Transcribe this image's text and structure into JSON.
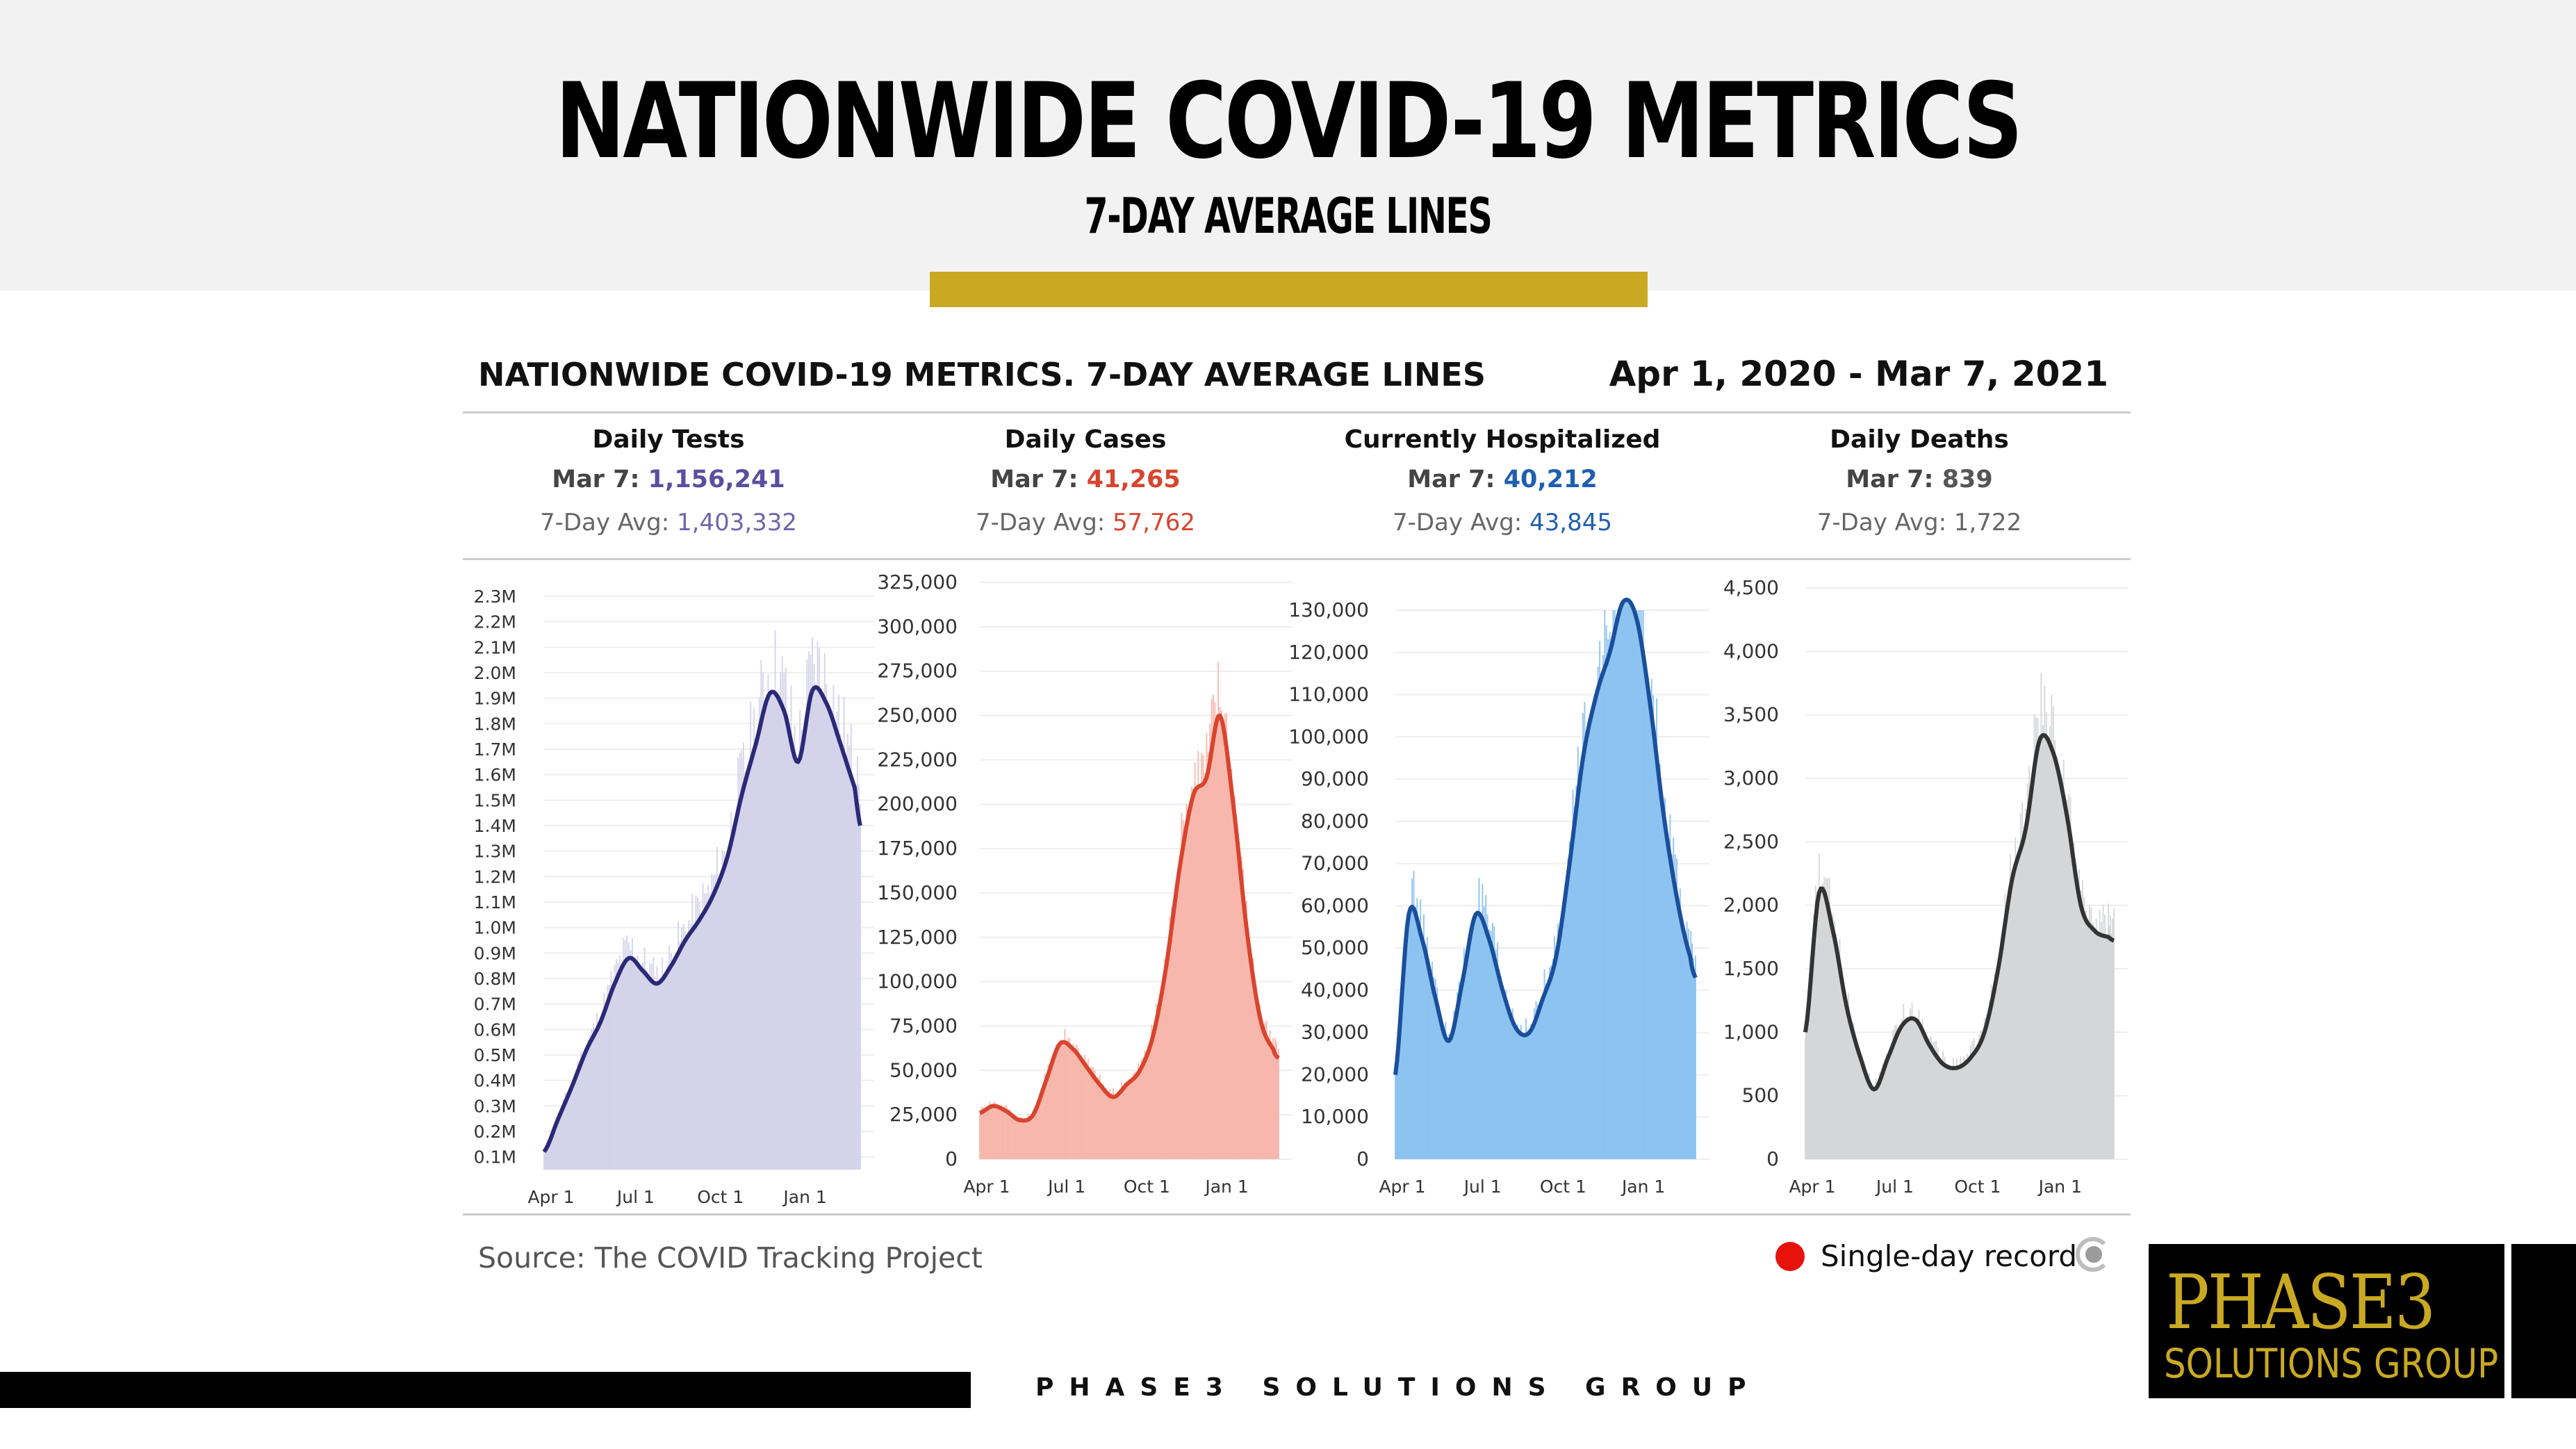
{
  "slide": {
    "title": "NATIONWIDE COVID-19 METRICS",
    "subtitle": "7-DAY AVERAGE LINES",
    "footer_text": "PHASE3 SOLUTIONS GROUP",
    "logo_main": "PHASE3",
    "logo_sub": "SOLUTIONS GROUP",
    "accent_color": "#c9a922"
  },
  "panel": {
    "title": "NATIONWIDE COVID-19 METRICS. 7-DAY AVERAGE LINES",
    "date_range": "Apr 1, 2020 - Mar 7, 2021",
    "source": "Source: The COVID Tracking Project",
    "legend_label": "Single-day record"
  },
  "metrics": [
    {
      "name": "Daily Tests",
      "today_label": "Mar 7: ",
      "today_value": "1,156,241",
      "avg_label": "7-Day Avg: ",
      "avg_value": "1,403,332",
      "color": "#5a4fa0"
    },
    {
      "name": "Daily Cases",
      "today_label": "Mar 7: ",
      "today_value": "41,265",
      "avg_label": "7-Day Avg: ",
      "avg_value": "57,762",
      "color": "#d9442e"
    },
    {
      "name": "Currently Hospitalized",
      "today_label": "Mar 7: ",
      "today_value": "40,212",
      "avg_label": "7-Day Avg: ",
      "avg_value": "43,845",
      "color": "#1f5fb0"
    },
    {
      "name": "Daily Deaths",
      "today_label": "Mar 7: ",
      "today_value": "839",
      "avg_label": "7-Day Avg: ",
      "avg_value": "1,722",
      "color": "#555555"
    }
  ],
  "chart_data": [
    {
      "type": "area",
      "title": "Daily Tests",
      "xlabel": "",
      "ylabel": "",
      "x_ticks": [
        "Apr 1",
        "Jul 1",
        "Oct 1",
        "Jan 1"
      ],
      "y_ticks": [
        "0.1M",
        "0.2M",
        "0.3M",
        "0.4M",
        "0.5M",
        "0.6M",
        "0.7M",
        "0.8M",
        "0.9M",
        "1.0M",
        "1.1M",
        "1.2M",
        "1.3M",
        "1.4M",
        "1.5M",
        "1.6M",
        "1.7M",
        "1.8M",
        "1.9M",
        "2.0M",
        "2.1M",
        "2.2M",
        "2.3M"
      ],
      "ylim": [
        0.05,
        2.3
      ],
      "x_months": [
        0,
        0.5,
        1,
        1.5,
        2,
        2.5,
        3,
        3.5,
        4,
        4.5,
        5,
        5.5,
        6,
        6.5,
        7,
        7.5,
        8,
        8.5,
        9,
        9.5,
        10,
        10.5,
        11,
        11.2
      ],
      "avg_values": [
        0.12,
        0.25,
        0.38,
        0.52,
        0.63,
        0.78,
        0.88,
        0.83,
        0.78,
        0.85,
        0.95,
        1.03,
        1.13,
        1.28,
        1.52,
        1.72,
        1.92,
        1.85,
        1.65,
        1.93,
        1.88,
        1.72,
        1.55,
        1.4
      ],
      "line_color": "#2a2a78",
      "fill_color": "#d4d3ea"
    },
    {
      "type": "area",
      "title": "Daily Cases",
      "xlabel": "",
      "ylabel": "",
      "x_ticks": [
        "Apr 1",
        "Jul 1",
        "Oct 1",
        "Jan 1"
      ],
      "y_ticks": [
        "0",
        "25,000",
        "50,000",
        "75,000",
        "100,000",
        "125,000",
        "150,000",
        "175,000",
        "200,000",
        "225,000",
        "250,000",
        "275,000",
        "300,000",
        "325,000"
      ],
      "ylim": [
        0,
        325000
      ],
      "x_months": [
        0,
        0.5,
        1,
        1.5,
        2,
        2.5,
        3,
        3.5,
        4,
        4.5,
        5,
        5.5,
        6,
        6.5,
        7,
        7.5,
        8,
        8.5,
        9,
        9.5,
        10,
        10.5,
        11,
        11.2
      ],
      "avg_values": [
        26000,
        30000,
        27000,
        22000,
        25000,
        45000,
        65000,
        62000,
        52000,
        42000,
        35000,
        42000,
        50000,
        70000,
        110000,
        165000,
        205000,
        215000,
        250000,
        200000,
        130000,
        80000,
        62000,
        57000
      ],
      "line_color": "#d9442e",
      "fill_color": "#f7b7ac"
    },
    {
      "type": "area",
      "title": "Currently Hospitalized",
      "xlabel": "",
      "ylabel": "",
      "x_ticks": [
        "Apr 1",
        "Jul 1",
        "Oct 1",
        "Jan 1"
      ],
      "y_ticks": [
        "0",
        "10,000",
        "20,000",
        "30,000",
        "40,000",
        "50,000",
        "60,000",
        "70,000",
        "80,000",
        "90,000",
        "100,000",
        "110,000",
        "120,000",
        "130,000"
      ],
      "ylim": [
        0,
        130000
      ],
      "x_months": [
        0,
        0.5,
        1,
        1.5,
        2,
        2.5,
        3,
        3.5,
        4,
        4.5,
        5,
        5.5,
        6,
        6.5,
        7,
        7.5,
        8,
        8.5,
        9,
        9.5,
        10,
        10.5,
        11,
        11.2
      ],
      "avg_values": [
        20000,
        58000,
        52000,
        38000,
        28000,
        42000,
        58000,
        52000,
        40000,
        31000,
        30000,
        38000,
        48000,
        70000,
        95000,
        110000,
        120000,
        132000,
        128000,
        108000,
        82000,
        62000,
        48000,
        43000
      ],
      "line_color": "#1a4f9c",
      "fill_color": "#8cc3f0"
    },
    {
      "type": "area",
      "title": "Daily Deaths",
      "xlabel": "",
      "ylabel": "",
      "x_ticks": [
        "Apr 1",
        "Jul 1",
        "Oct 1",
        "Jan 1"
      ],
      "y_ticks": [
        "0",
        "500",
        "1,000",
        "1,500",
        "2,000",
        "2,500",
        "3,000",
        "3,500",
        "4,000",
        "4,500"
      ],
      "ylim": [
        0,
        4500
      ],
      "x_months": [
        0,
        0.5,
        1,
        1.5,
        2,
        2.5,
        3,
        3.5,
        4,
        4.5,
        5,
        5.5,
        6,
        6.5,
        7,
        7.5,
        8,
        8.5,
        9,
        9.5,
        10,
        10.5,
        11,
        11.2
      ],
      "avg_values": [
        1000,
        2100,
        1800,
        1200,
        800,
        550,
        800,
        1050,
        1100,
        900,
        750,
        720,
        800,
        1000,
        1500,
        2200,
        2600,
        3300,
        3200,
        2700,
        2000,
        1800,
        1750,
        1722
      ],
      "line_color": "#333333",
      "fill_color": "#d4d6d8"
    }
  ]
}
